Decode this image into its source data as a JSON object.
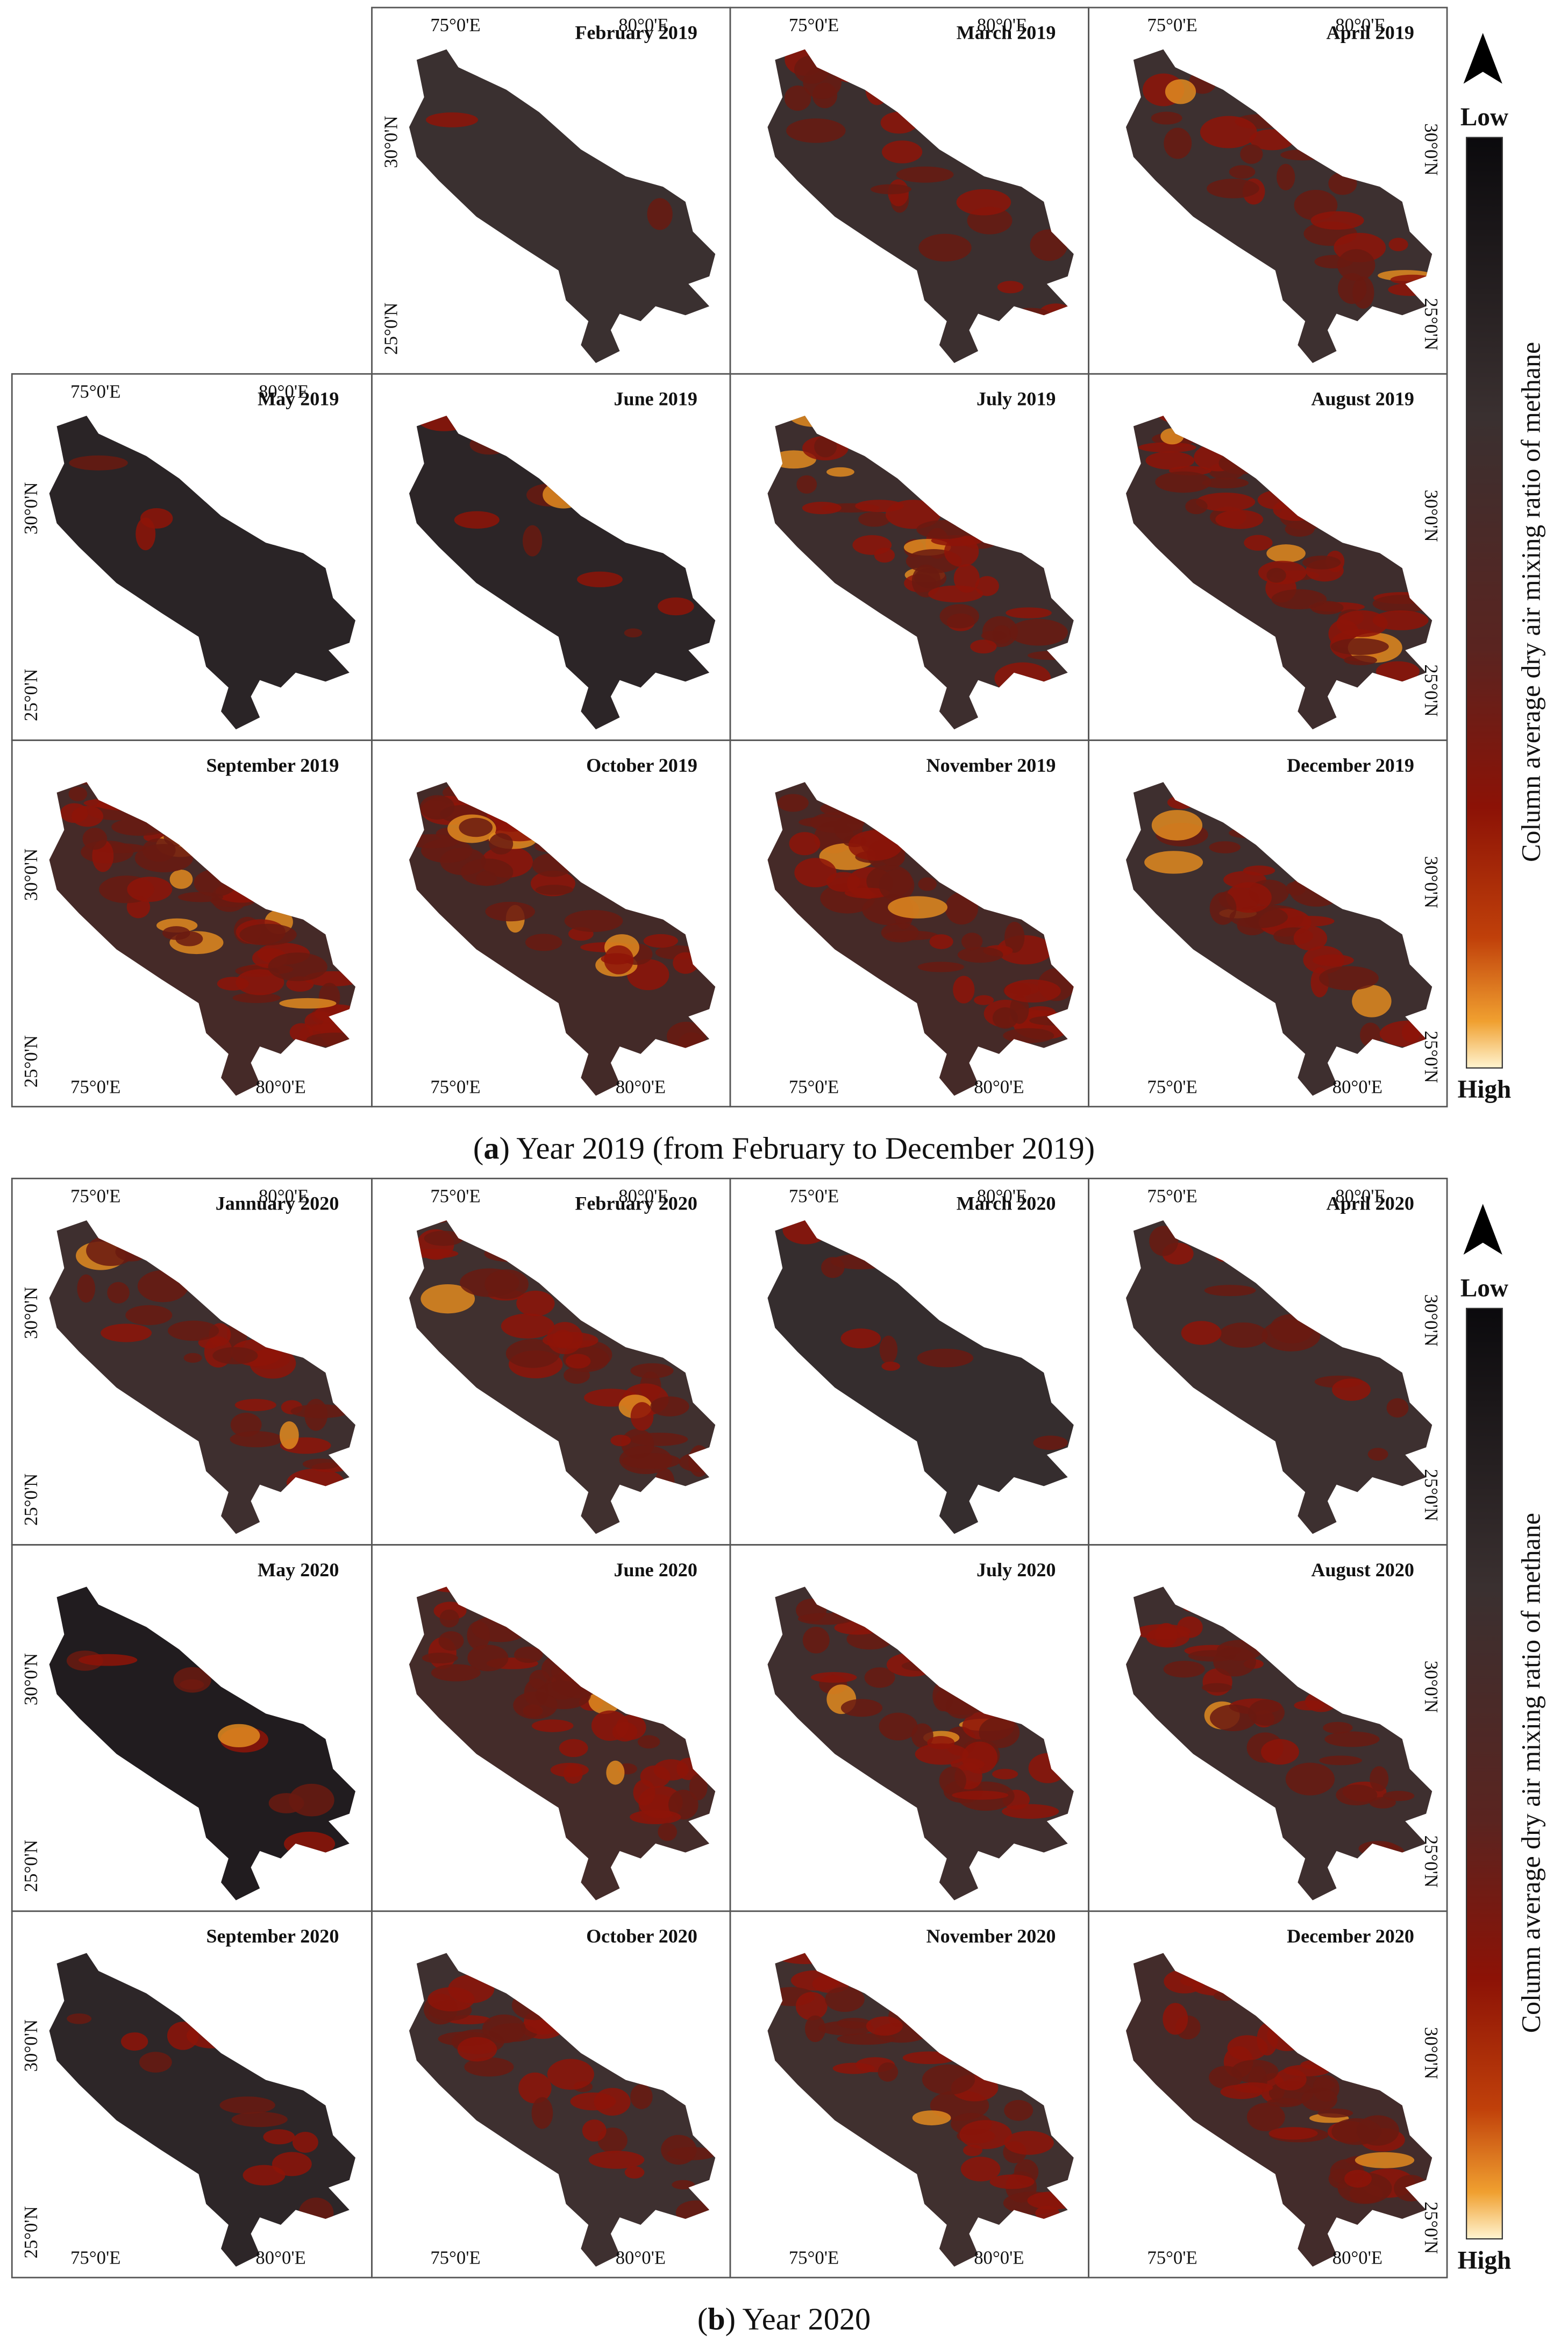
{
  "figure_a": {
    "caption": {
      "open": "(",
      "letter": "a",
      "rest": ") Year 2019 (from February to December 2019)"
    },
    "panels": [
      {
        "title": "February 2019"
      },
      {
        "title": "March 2019"
      },
      {
        "title": "April 2019"
      },
      {
        "title": "May 2019"
      },
      {
        "title": "June 2019"
      },
      {
        "title": "July 2019"
      },
      {
        "title": "August 2019"
      },
      {
        "title": "September 2019"
      },
      {
        "title": "October 2019"
      },
      {
        "title": "November 2019"
      },
      {
        "title": "December 2019"
      }
    ]
  },
  "figure_b": {
    "caption": {
      "open": "(",
      "letter": "b",
      "rest": ") Year 2020"
    },
    "panels": [
      {
        "title": "Jannuary 2020"
      },
      {
        "title": "February 2020"
      },
      {
        "title": "March 2020"
      },
      {
        "title": "April 2020"
      },
      {
        "title": "May 2020"
      },
      {
        "title": "June 2020"
      },
      {
        "title": "July 2020"
      },
      {
        "title": "August 2020"
      },
      {
        "title": "September 2020"
      },
      {
        "title": "October 2020"
      },
      {
        "title": "November 2020"
      },
      {
        "title": "December 2020"
      }
    ]
  },
  "coordinates": {
    "lon": [
      "75°0'E",
      "80°0'E"
    ],
    "lat": [
      "30°0'N",
      "25°0'N"
    ]
  },
  "legend": {
    "low": "Low",
    "high": "High",
    "label": "Column average dry air mixing ratio of methane"
  }
}
